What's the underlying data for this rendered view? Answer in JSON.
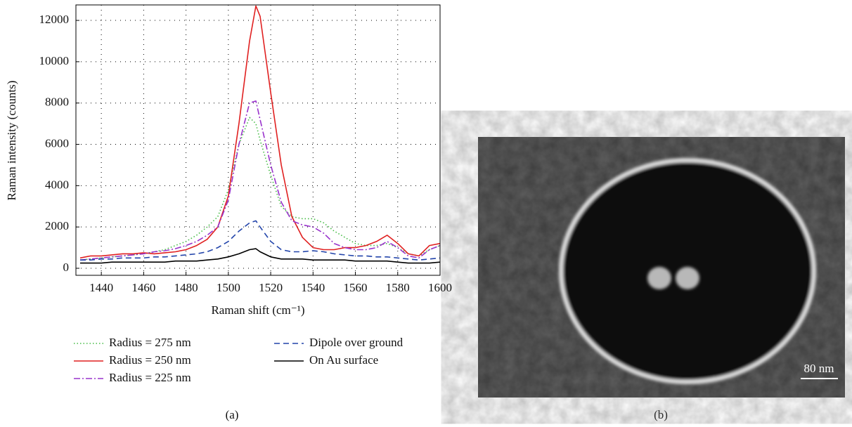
{
  "chart_data": {
    "type": "line",
    "xlabel": "Raman shift (cm⁻¹)",
    "ylabel": "Raman intensity (counts)",
    "x": [
      1430,
      1435,
      1440,
      1445,
      1450,
      1455,
      1460,
      1465,
      1470,
      1475,
      1480,
      1485,
      1490,
      1495,
      1500,
      1505,
      1510,
      1513,
      1515,
      1520,
      1525,
      1530,
      1535,
      1540,
      1545,
      1550,
      1555,
      1560,
      1565,
      1570,
      1575,
      1580,
      1585,
      1590,
      1595,
      1600
    ],
    "series": [
      {
        "name": "Radius = 275 nm",
        "color": "#44bb44",
        "style": "dotted",
        "values": [
          400,
          450,
          500,
          550,
          600,
          650,
          700,
          800,
          900,
          1100,
          1300,
          1600,
          2000,
          2500,
          3800,
          6000,
          7300,
          7000,
          6200,
          4500,
          3000,
          2500,
          2400,
          2400,
          2200,
          1800,
          1500,
          1200,
          1100,
          1100,
          1200,
          1000,
          700,
          600,
          900,
          1100
        ]
      },
      {
        "name": "Radius = 250 nm",
        "color": "#e02020",
        "style": "solid",
        "values": [
          500,
          600,
          600,
          650,
          700,
          700,
          750,
          700,
          750,
          800,
          900,
          1100,
          1400,
          2000,
          3500,
          7000,
          11000,
          12700,
          12200,
          8500,
          5000,
          2500,
          1500,
          1000,
          900,
          900,
          1000,
          1000,
          1100,
          1300,
          1600,
          1200,
          700,
          600,
          1100,
          1200
        ]
      },
      {
        "name": "Radius = 225 nm",
        "color": "#9933cc",
        "style": "dashdot",
        "values": [
          400,
          450,
          500,
          550,
          600,
          650,
          700,
          800,
          850,
          950,
          1100,
          1300,
          1600,
          2000,
          3300,
          6000,
          8000,
          8100,
          7200,
          5000,
          3200,
          2300,
          2100,
          2000,
          1700,
          1200,
          1000,
          900,
          900,
          1000,
          1300,
          1000,
          600,
          500,
          900,
          1100
        ]
      },
      {
        "name": "Dipole over ground",
        "color": "#2244aa",
        "style": "dashed",
        "values": [
          400,
          400,
          450,
          450,
          500,
          500,
          500,
          550,
          550,
          600,
          650,
          700,
          800,
          1000,
          1300,
          1800,
          2200,
          2300,
          2000,
          1300,
          900,
          800,
          800,
          850,
          800,
          700,
          650,
          600,
          600,
          550,
          550,
          500,
          450,
          400,
          450,
          500
        ]
      },
      {
        "name": "On Au surface",
        "color": "#000000",
        "style": "solid",
        "values": [
          250,
          250,
          250,
          300,
          300,
          300,
          300,
          300,
          300,
          350,
          350,
          350,
          400,
          450,
          550,
          700,
          900,
          950,
          800,
          550,
          450,
          450,
          450,
          400,
          400,
          400,
          400,
          350,
          350,
          350,
          350,
          300,
          250,
          250,
          250,
          300
        ]
      }
    ],
    "xlim": [
      1428,
      1600
    ],
    "xticks": [
      1440,
      1460,
      1480,
      1500,
      1520,
      1540,
      1560,
      1580,
      1600
    ],
    "ylim": [
      -340,
      12750
    ],
    "yticks": [
      0,
      2000,
      4000,
      6000,
      8000,
      10000,
      12000
    ],
    "grid": true
  },
  "panel_labels": [
    "(a)",
    "(b)"
  ],
  "scale_bar": "80 nm"
}
